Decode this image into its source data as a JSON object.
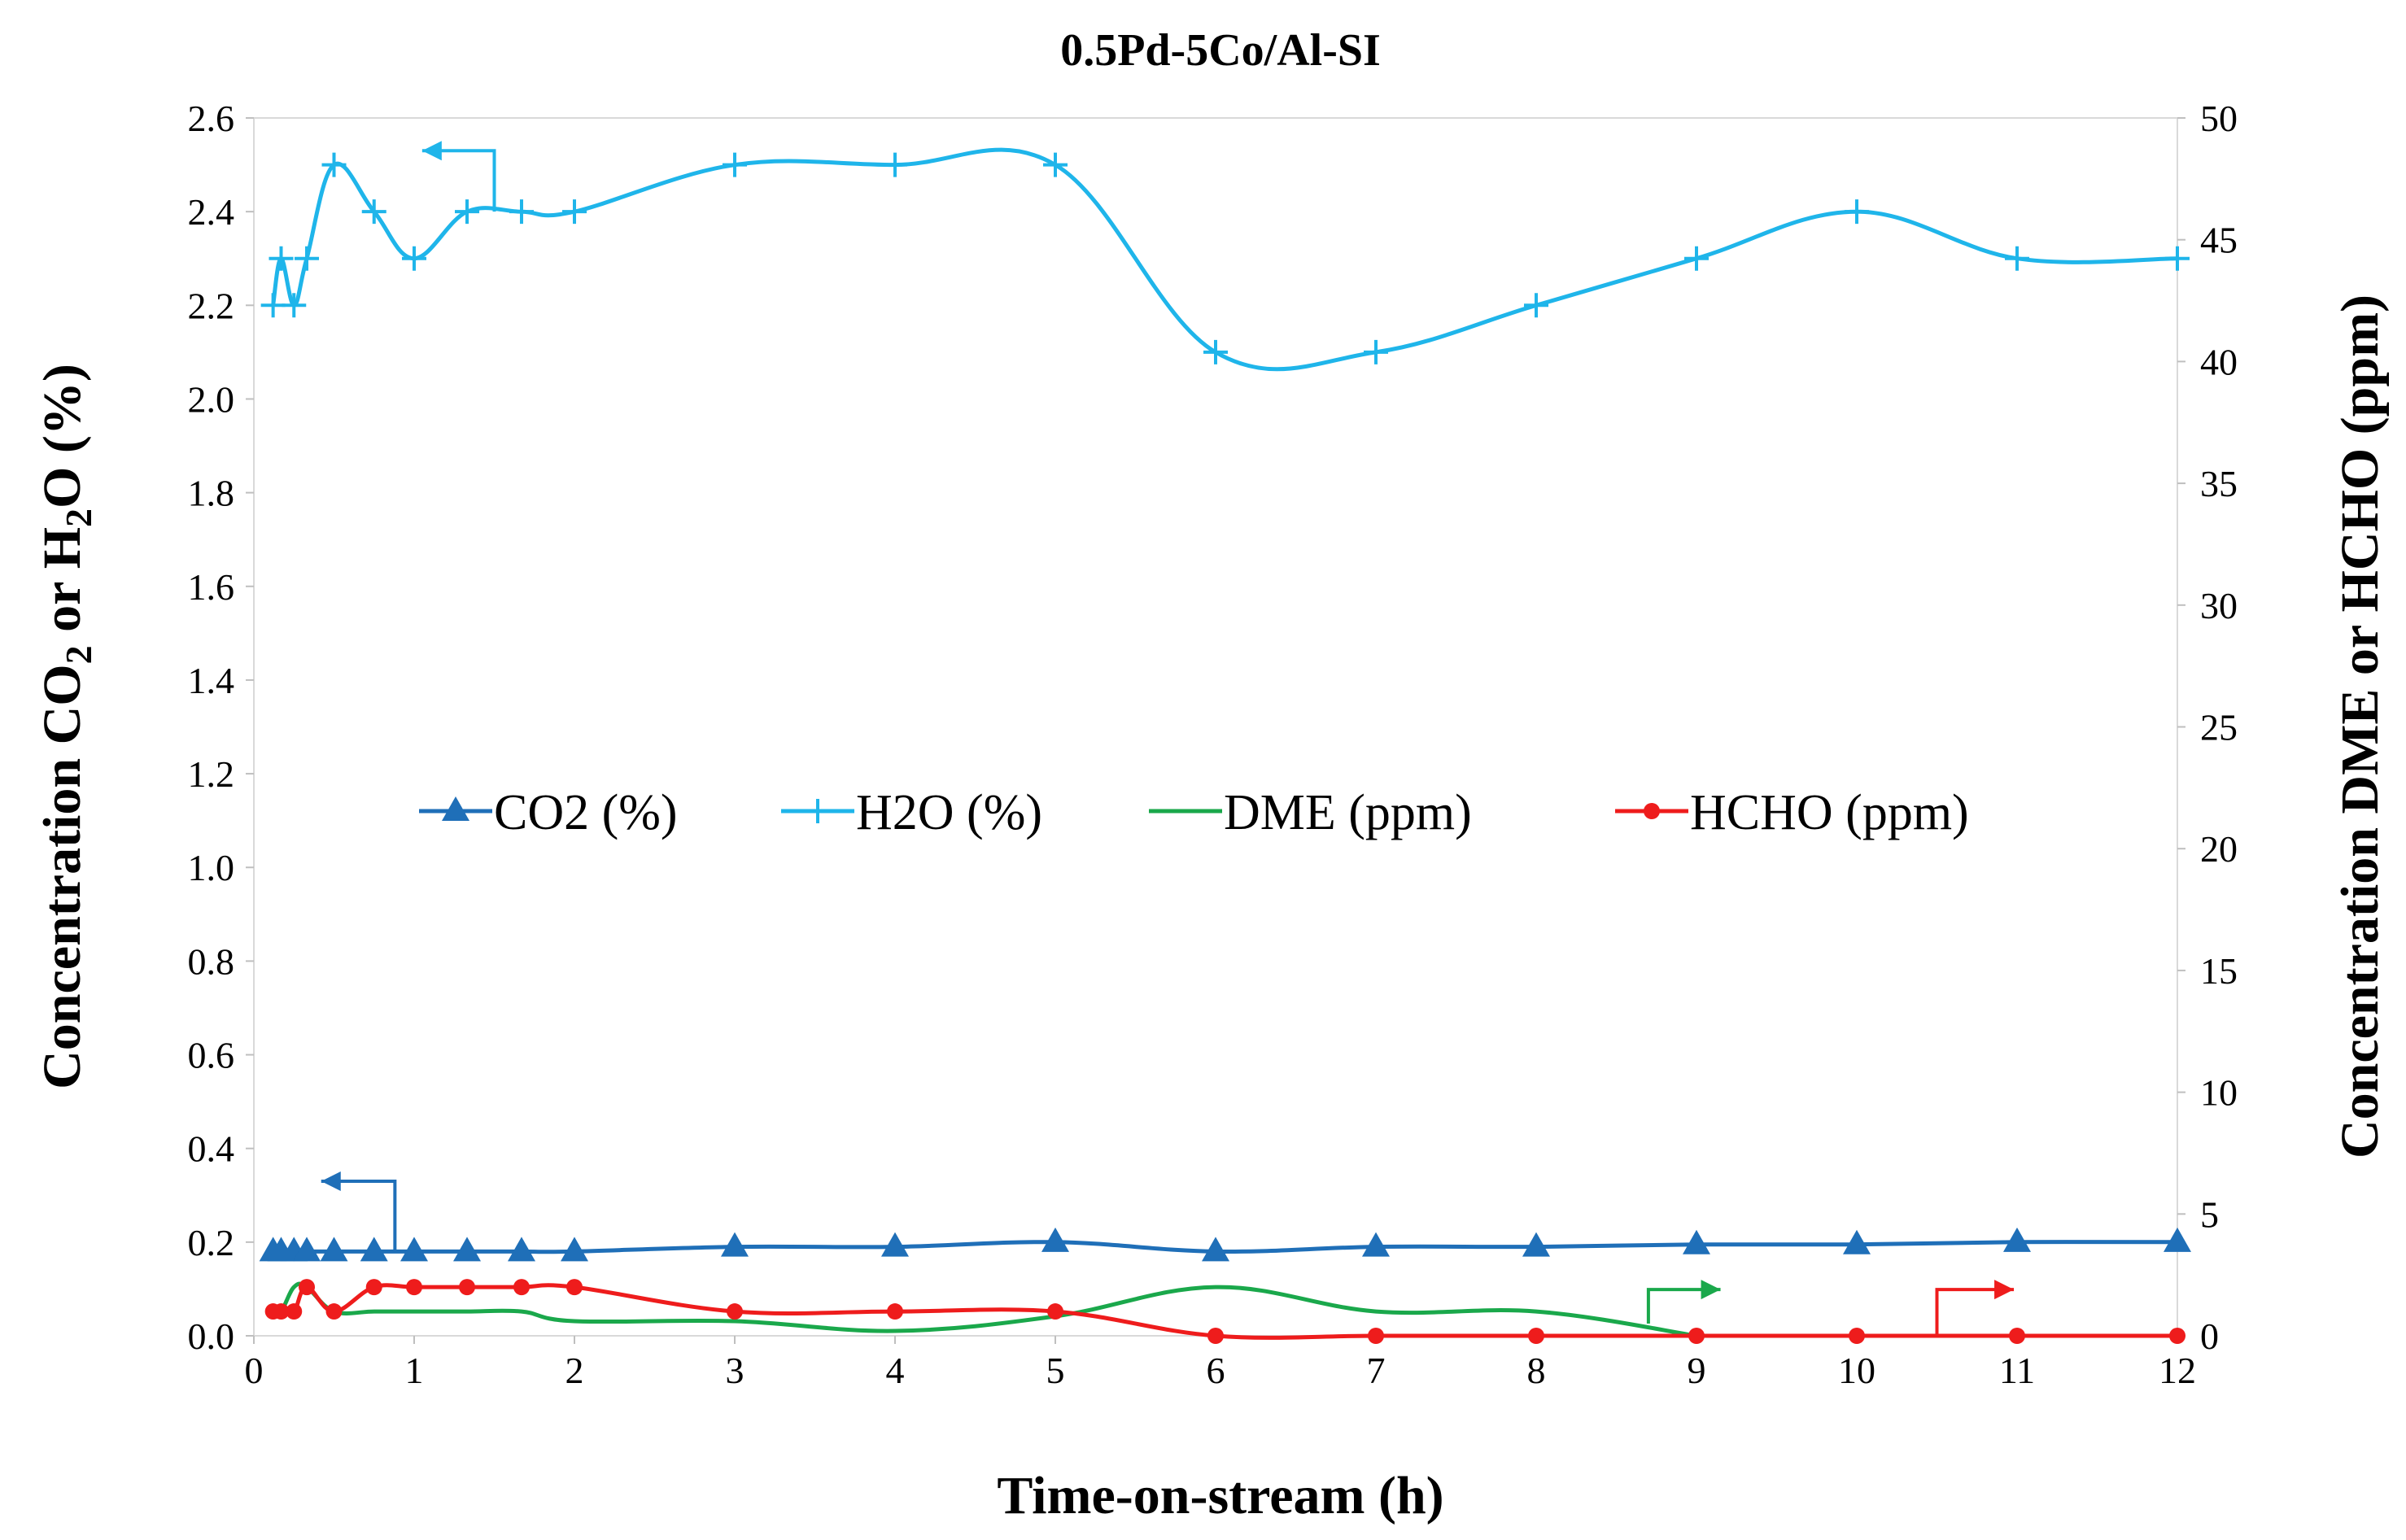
{
  "chart_data": {
    "type": "line",
    "title": "0.5Pd-5Co/Al-SI",
    "xlabel": "Time-on-stream (h)",
    "ylabel_left": {
      "pre": "Concentration CO",
      "sub1": "2",
      "mid": " or H",
      "sub2": "2",
      "post": "O (%)"
    },
    "ylabel_right": "Concentration DME or HCHO (ppm)",
    "xlim": [
      0,
      12
    ],
    "ylim_left": [
      0,
      2.6
    ],
    "ylim_right": [
      0,
      50
    ],
    "xticks": [
      "0",
      "1",
      "2",
      "3",
      "4",
      "5",
      "6",
      "7",
      "8",
      "9",
      "10",
      "11",
      "12"
    ],
    "yticks_left": [
      "0.0",
      "0.2",
      "0.4",
      "0.6",
      "0.8",
      "1.0",
      "1.2",
      "1.4",
      "1.6",
      "1.8",
      "2.0",
      "2.2",
      "2.4",
      "2.6"
    ],
    "yticks_right": [
      "0",
      "5",
      "10",
      "15",
      "20",
      "25",
      "30",
      "35",
      "40",
      "45",
      "50"
    ],
    "legend_position": "center",
    "series": [
      {
        "name": "CO2 (%)",
        "axis": "left",
        "color": "#1f6fb8",
        "marker": "triangle",
        "x": [
          0.12,
          0.17,
          0.25,
          0.33,
          0.5,
          0.75,
          1,
          1.33,
          1.67,
          2,
          3,
          4,
          5,
          6,
          7,
          8,
          9,
          10,
          11,
          12
        ],
        "y": [
          0.18,
          0.18,
          0.18,
          0.18,
          0.18,
          0.18,
          0.18,
          0.18,
          0.18,
          0.18,
          0.19,
          0.19,
          0.2,
          0.18,
          0.19,
          0.19,
          0.195,
          0.195,
          0.2,
          0.2
        ]
      },
      {
        "name": "H2O (%)",
        "axis": "left",
        "color": "#1fb5ea",
        "marker": "plus",
        "x": [
          0.12,
          0.17,
          0.25,
          0.33,
          0.5,
          0.75,
          1,
          1.33,
          1.67,
          2,
          3,
          4,
          5,
          6,
          7,
          8,
          9,
          10,
          11,
          12
        ],
        "y": [
          2.2,
          2.3,
          2.2,
          2.3,
          2.5,
          2.4,
          2.3,
          2.4,
          2.4,
          2.4,
          2.5,
          2.5,
          2.5,
          2.1,
          2.1,
          2.2,
          2.3,
          2.4,
          2.3,
          2.3
        ]
      },
      {
        "name": "DME (ppm)",
        "axis": "right",
        "color": "#1aa84b",
        "marker": "dash",
        "x": [
          0.12,
          0.17,
          0.25,
          0.33,
          0.5,
          0.75,
          1,
          1.33,
          1.67,
          2,
          3,
          4,
          5,
          6,
          7,
          8,
          9
        ],
        "y": [
          1,
          1,
          2,
          2,
          1,
          1,
          1,
          1,
          1,
          0.6,
          0.6,
          0.2,
          0.8,
          2,
          1,
          1,
          0
        ]
      },
      {
        "name": "HCHO (ppm)",
        "axis": "right",
        "color": "#ee1c1c",
        "marker": "circle",
        "x": [
          0.12,
          0.17,
          0.25,
          0.33,
          0.5,
          0.75,
          1,
          1.33,
          1.67,
          2,
          3,
          4,
          5,
          6,
          7,
          8,
          9,
          10,
          11,
          12
        ],
        "y": [
          1,
          1,
          1,
          2,
          1,
          2,
          2,
          2,
          2,
          2,
          1,
          1,
          1,
          0,
          0,
          0,
          0,
          0,
          0,
          0
        ]
      }
    ],
    "annotations": [
      {
        "type": "arrow-left",
        "points_to": "left axis",
        "series": "H2O (%)",
        "from_x": 1.5,
        "to_x": 1.05,
        "stem_y": 2.4,
        "bar_y": 2.53
      },
      {
        "type": "arrow-left",
        "points_to": "left axis",
        "series": "CO2 (%)",
        "from_x": 0.88,
        "to_x": 0.42,
        "stem_y": 0.18,
        "bar_y": 0.33
      },
      {
        "type": "arrow-right",
        "points_to": "right axis",
        "series": "DME (ppm)",
        "from_x": 8.7,
        "to_x": 9.15,
        "stem_y": 0.5,
        "bar_y": 1.9
      },
      {
        "type": "arrow-right",
        "points_to": "right axis",
        "series": "HCHO (ppm)",
        "from_x": 10.5,
        "to_x": 10.98,
        "stem_y": 0,
        "bar_y": 1.9
      }
    ]
  }
}
